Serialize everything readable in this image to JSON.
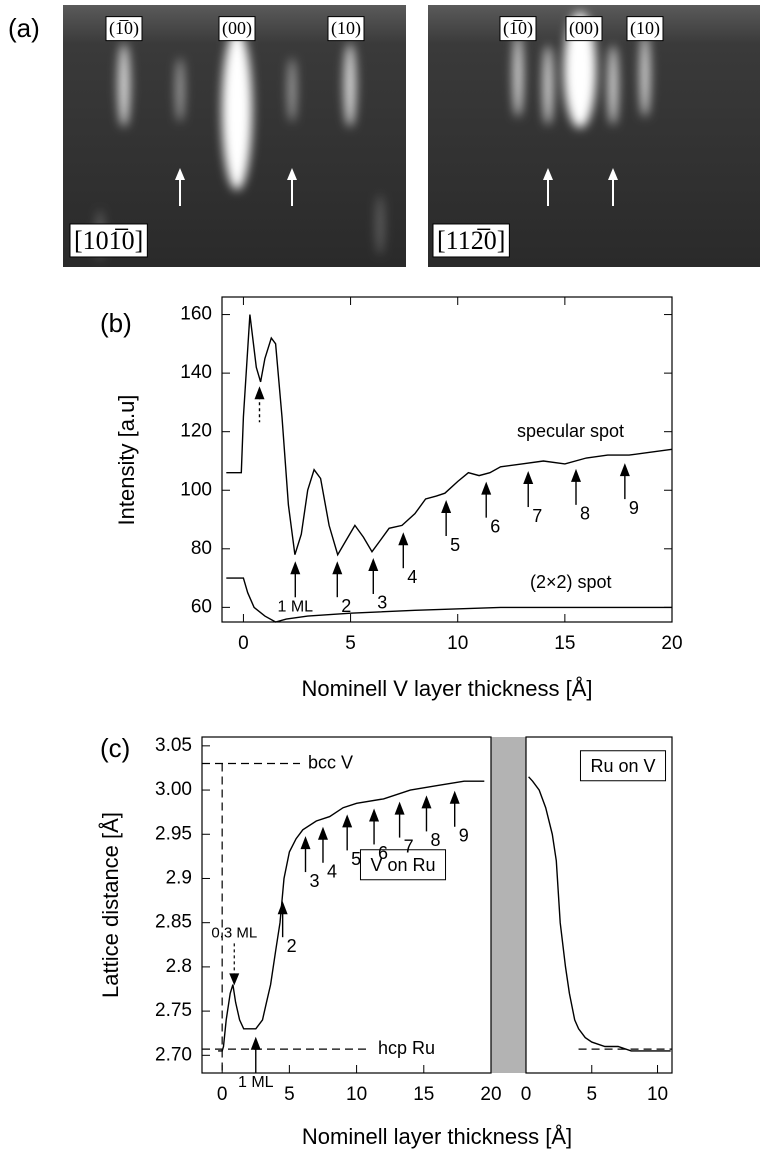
{
  "panel_a": {
    "label": "(a)",
    "images": [
      {
        "spots": [
          "(1̅0)",
          "(00)",
          "(10)"
        ],
        "direction": "[101̅0]"
      },
      {
        "spots": [
          "(1̅0)",
          "(00)",
          "(10)"
        ],
        "direction": "[112̅0]"
      }
    ]
  },
  "chart_data": [
    {
      "type": "line",
      "label": "(b)",
      "xlabel": "Nominell V layer thickness [Å]",
      "ylabel": "Intensity [a.u]",
      "xlim": [
        -1,
        20
      ],
      "xticks": [
        0,
        5,
        10,
        15,
        20
      ],
      "ylim": [
        55,
        166
      ],
      "yticks": [
        60,
        80,
        100,
        120,
        140,
        160
      ],
      "color": "#000000",
      "series": [
        {
          "name": "specular spot",
          "x": [
            -0.8,
            -0.1,
            0,
            0.3,
            0.6,
            0.8,
            1.0,
            1.3,
            1.5,
            1.8,
            2.1,
            2.4,
            2.7,
            3.0,
            3.3,
            3.6,
            4.0,
            4.4,
            4.8,
            5.2,
            5.6,
            6.0,
            6.4,
            6.8,
            7.4,
            8,
            8.5,
            9,
            9.4,
            10,
            10.5,
            11,
            11.5,
            12,
            13,
            14,
            15,
            16,
            17,
            18,
            19,
            20
          ],
          "values": [
            106,
            106,
            125,
            160,
            142,
            137,
            145,
            152,
            150,
            125,
            95,
            78,
            85,
            100,
            107,
            104,
            88,
            78,
            83,
            88,
            84,
            79,
            83,
            87,
            88,
            92,
            97,
            98,
            99,
            103,
            106,
            105,
            106,
            108,
            109,
            110,
            109,
            111,
            112,
            112,
            113,
            114
          ]
        },
        {
          "name": "(2×2) spot",
          "x": [
            -0.8,
            0,
            0.2,
            0.5,
            1,
            1.5,
            2,
            3,
            5,
            8,
            12,
            15,
            17,
            20
          ],
          "values": [
            70,
            70,
            65,
            60,
            57,
            55,
            56,
            57,
            58,
            59,
            60,
            60,
            60,
            60
          ]
        }
      ],
      "markers": [
        {
          "x": 0.75,
          "style": "dashed"
        },
        {
          "label": "1 ML",
          "x": 2.42
        },
        {
          "label": "2",
          "x": 4.38
        },
        {
          "label": "3",
          "x": 6.06
        },
        {
          "label": "4",
          "x": 7.46
        },
        {
          "label": "5",
          "x": 9.46
        },
        {
          "label": "6",
          "x": 11.33
        },
        {
          "label": "7",
          "x": 13.29
        },
        {
          "label": "8",
          "x": 15.52
        },
        {
          "label": "9",
          "x": 17.8
        }
      ]
    },
    {
      "type": "line",
      "label": "(c)",
      "xlabel": "Nominell layer thickness [Å]",
      "ylabel": "Lattice distance [Å]",
      "xlim": [
        -1.5,
        20
      ],
      "xticks": [
        0,
        5,
        10,
        15,
        20
      ],
      "ylim": [
        2.68,
        3.06
      ],
      "yticks": [
        {
          "value": 2.7,
          "label": "2.70"
        },
        2.75,
        2.8,
        2.85,
        2.9,
        2.95,
        {
          "value": 3,
          "label": "3.00"
        },
        3.05
      ],
      "color": "#000000",
      "series": [
        {
          "name": "V on Ru",
          "x": [
            -0.3,
            0,
            0.1,
            0.3,
            0.6,
            0.8,
            1.0,
            1.3,
            1.6,
            2,
            2.5,
            3,
            3.3,
            3.6,
            4,
            4.3,
            4.6,
            5,
            5.5,
            6,
            7,
            8,
            9,
            10,
            12,
            14,
            16,
            18,
            19.5
          ],
          "values": [
            2.705,
            2.705,
            2.71,
            2.74,
            2.77,
            2.78,
            2.76,
            2.74,
            2.73,
            2.73,
            2.73,
            2.74,
            2.76,
            2.78,
            2.82,
            2.85,
            2.9,
            2.93,
            2.945,
            2.955,
            2.965,
            2.97,
            2.98,
            2.985,
            2.99,
            3.0,
            3.005,
            3.01,
            3.01
          ]
        }
      ],
      "reference_lines": [
        {
          "label": "bcc V",
          "y": 3.03
        },
        {
          "label": "hcp Ru",
          "y": 2.707
        }
      ],
      "vlines": [
        0
      ],
      "markers": [
        {
          "label": "0.3 ML",
          "x": 0.9,
          "direction": "down",
          "style": "dashed"
        },
        {
          "label": "1 ML",
          "x": 2.5
        },
        {
          "label": "2",
          "x": 4.5
        },
        {
          "label": "3",
          "x": 6.2
        },
        {
          "label": "4",
          "x": 7.5
        },
        {
          "label": "5",
          "x": 9.3
        },
        {
          "label": "6",
          "x": 11.3
        },
        {
          "label": "7",
          "x": 13.2
        },
        {
          "label": "8",
          "x": 15.2
        },
        {
          "label": "9",
          "x": 17.3
        }
      ]
    },
    {
      "type": "line",
      "xlim": [
        0,
        11.1
      ],
      "xticks": [
        0,
        5,
        10
      ],
      "ylim": [
        2.68,
        3.06
      ],
      "color": "#000000",
      "series": [
        {
          "name": "Ru on V",
          "x": [
            0.2,
            0.5,
            1,
            1.5,
            2,
            2.3,
            2.6,
            3,
            3.3,
            3.7,
            4,
            4.5,
            5,
            6,
            7,
            8,
            9,
            10,
            11
          ],
          "values": [
            3.015,
            3.01,
            3.0,
            2.98,
            2.95,
            2.92,
            2.85,
            2.8,
            2.77,
            2.74,
            2.73,
            2.72,
            2.715,
            2.71,
            2.71,
            2.705,
            2.705,
            2.705,
            2.705
          ]
        }
      ],
      "reference_lines": [
        {
          "y": 2.707
        }
      ]
    }
  ]
}
